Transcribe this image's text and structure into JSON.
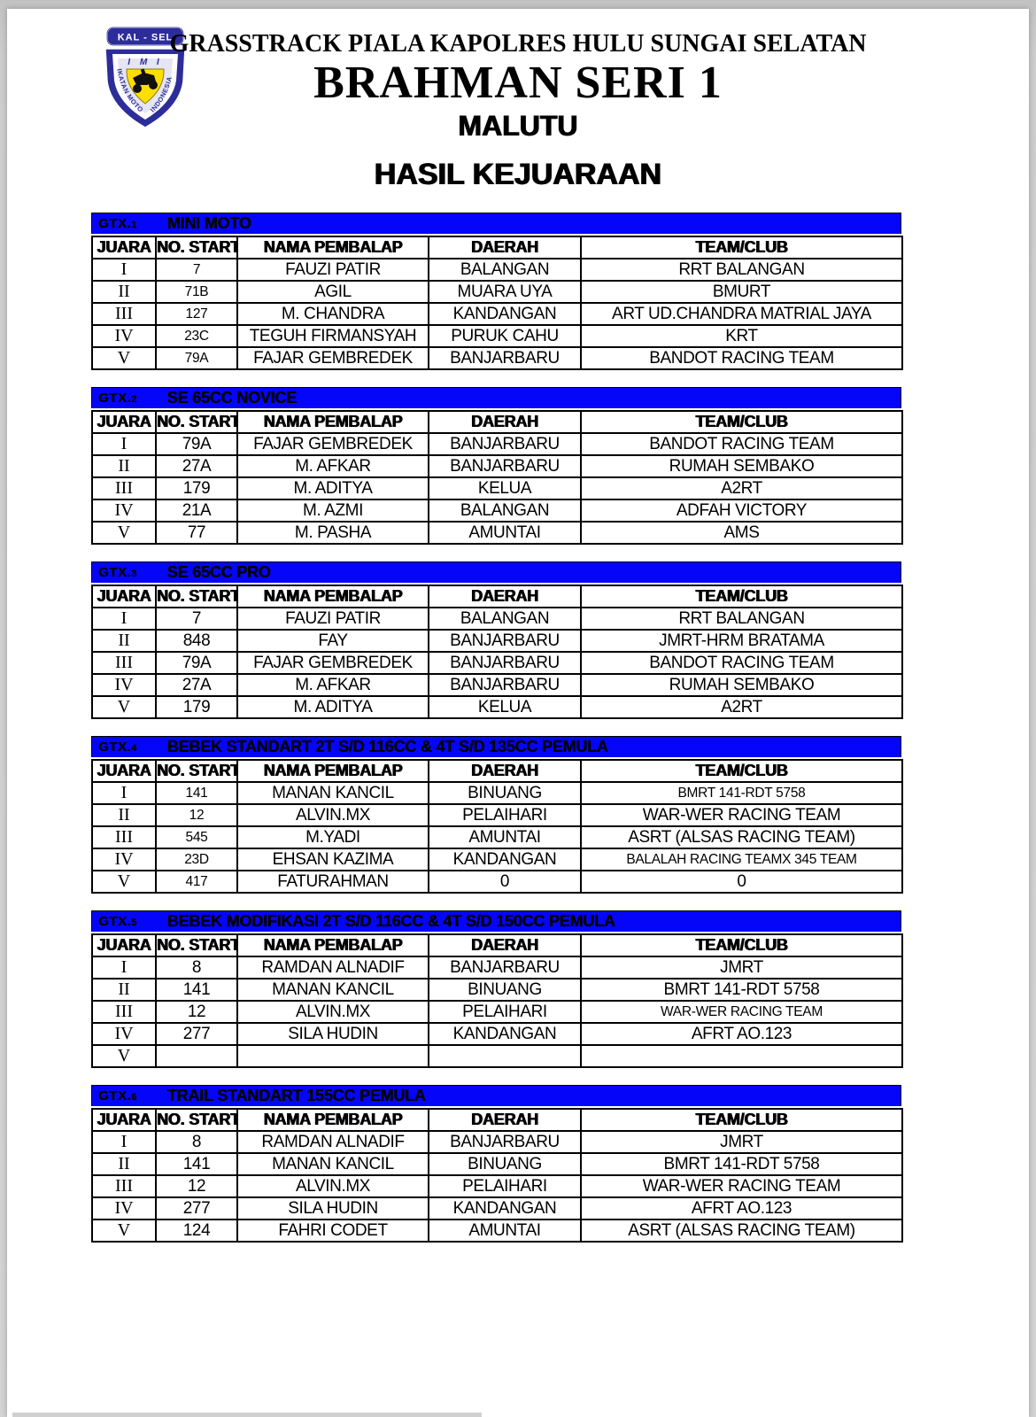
{
  "header": {
    "event_title": "GRASSTRACK PIALA KAPOLRES HULU SUNGAI SELATAN",
    "series_title": "BRAHMAN SERI 1",
    "location": "MALUTU",
    "results_heading": "HASIL KEJUARAAN",
    "logo": {
      "banner_text": "KAL - SEL",
      "imi_text": "I M I",
      "arc_left_text": "IKATAN MOTOR",
      "arc_right_text": "INDONESIA",
      "blue": "#2d2d9a",
      "yellow": "#ffdf00"
    }
  },
  "accent_blue": "#0505fa",
  "columns": [
    "JUARA",
    "NO. START",
    "NAMA PEMBALAP",
    "DAERAH",
    "TEAM/CLUB"
  ],
  "tables": [
    {
      "code": "GTX.1",
      "category": "MINI MOTO",
      "rows": [
        [
          "I",
          "7",
          "FAUZI PATIR",
          "BALANGAN",
          "RRT BALANGAN"
        ],
        [
          "II",
          "71B",
          "AGIL",
          "MUARA UYA",
          "BMURT"
        ],
        [
          "III",
          "127",
          "M. CHANDRA",
          "KANDANGAN",
          "ART UD.CHANDRA MATRIAL JAYA"
        ],
        [
          "IV",
          "23C",
          "TEGUH FIRMANSYAH",
          "PURUK CAHU",
          "KRT"
        ],
        [
          "V",
          "79A",
          "FAJAR GEMBREDEK",
          "BANJARBARU",
          "BANDOT RACING TEAM"
        ]
      ],
      "small_cells": [
        [
          0,
          1
        ],
        [
          1,
          1
        ],
        [
          2,
          1
        ],
        [
          3,
          1
        ],
        [
          4,
          1
        ]
      ]
    },
    {
      "code": "GTX.2",
      "category": "SE 65CC NOVICE",
      "rows": [
        [
          "I",
          "79A",
          "FAJAR GEMBREDEK",
          "BANJARBARU",
          "BANDOT RACING TEAM"
        ],
        [
          "II",
          "27A",
          "M. AFKAR",
          "BANJARBARU",
          "RUMAH SEMBAKO"
        ],
        [
          "III",
          "179",
          "M. ADITYA",
          "KELUA",
          "A2RT"
        ],
        [
          "IV",
          "21A",
          "M. AZMI",
          "BALANGAN",
          "ADFAH VICTORY"
        ],
        [
          "V",
          "77",
          "M. PASHA",
          "AMUNTAI",
          "AMS"
        ]
      ],
      "small_cells": []
    },
    {
      "code": "GTX.3",
      "category": "SE 65CC PRO",
      "rows": [
        [
          "I",
          "7",
          "FAUZI PATIR",
          "BALANGAN",
          "RRT BALANGAN"
        ],
        [
          "II",
          "848",
          "FAY",
          "BANJARBARU",
          "JMRT-HRM BRATAMA"
        ],
        [
          "III",
          "79A",
          "FAJAR GEMBREDEK",
          "BANJARBARU",
          "BANDOT RACING TEAM"
        ],
        [
          "IV",
          "27A",
          "M. AFKAR",
          "BANJARBARU",
          "RUMAH SEMBAKO"
        ],
        [
          "V",
          "179",
          "M. ADITYA",
          "KELUA",
          "A2RT"
        ]
      ],
      "small_cells": []
    },
    {
      "code": "GTX.4",
      "category": "BEBEK STANDART 2T S/D 116CC & 4T S/D 135CC PEMULA",
      "rows": [
        [
          "I",
          "141",
          "MANAN KANCIL",
          "BINUANG",
          "BMRT 141-RDT 5758"
        ],
        [
          "II",
          "12",
          "ALVIN.MX",
          "PELAIHARI",
          "WAR-WER RACING TEAM"
        ],
        [
          "III",
          "545",
          "M.YADI",
          "AMUNTAI",
          "ASRT (ALSAS RACING TEAM)"
        ],
        [
          "IV",
          "23D",
          "EHSAN KAZIMA",
          "KANDANGAN",
          "BALALAH RACING TEAMX 345 TEAM"
        ],
        [
          "V",
          "417",
          "FATURAHMAN",
          "0",
          "0"
        ]
      ],
      "small_cells": [
        [
          0,
          1
        ],
        [
          1,
          1
        ],
        [
          2,
          1
        ],
        [
          3,
          1
        ],
        [
          4,
          1
        ],
        [
          0,
          4
        ],
        [
          3,
          4
        ]
      ]
    },
    {
      "code": "GTX.5",
      "category": "BEBEK MODIFIKASI 2T S/D 116CC & 4T S/D 150CC PEMULA",
      "rows": [
        [
          "I",
          "8",
          "RAMDAN ALNADIF",
          "BANJARBARU",
          "JMRT"
        ],
        [
          "II",
          "141",
          "MANAN KANCIL",
          "BINUANG",
          "BMRT 141-RDT 5758"
        ],
        [
          "III",
          "12",
          "ALVIN.MX",
          "PELAIHARI",
          "WAR-WER RACING TEAM"
        ],
        [
          "IV",
          "277",
          "SILA HUDIN",
          "KANDANGAN",
          "AFRT AO.123"
        ],
        [
          "V",
          "",
          "",
          "",
          ""
        ]
      ],
      "small_cells": [
        [
          2,
          4
        ]
      ]
    },
    {
      "code": "GTX.6",
      "category": "TRAIL STANDART 155CC PEMULA",
      "rows": [
        [
          "I",
          "8",
          "RAMDAN ALNADIF",
          "BANJARBARU",
          "JMRT"
        ],
        [
          "II",
          "141",
          "MANAN KANCIL",
          "BINUANG",
          "BMRT 141-RDT 5758"
        ],
        [
          "III",
          "12",
          "ALVIN.MX",
          "PELAIHARI",
          "WAR-WER RACING TEAM"
        ],
        [
          "IV",
          "277",
          "SILA HUDIN",
          "KANDANGAN",
          "AFRT AO.123"
        ],
        [
          "V",
          "124",
          "FAHRI CODET",
          "AMUNTAI",
          "ASRT (ALSAS RACING TEAM)"
        ]
      ],
      "small_cells": []
    }
  ]
}
